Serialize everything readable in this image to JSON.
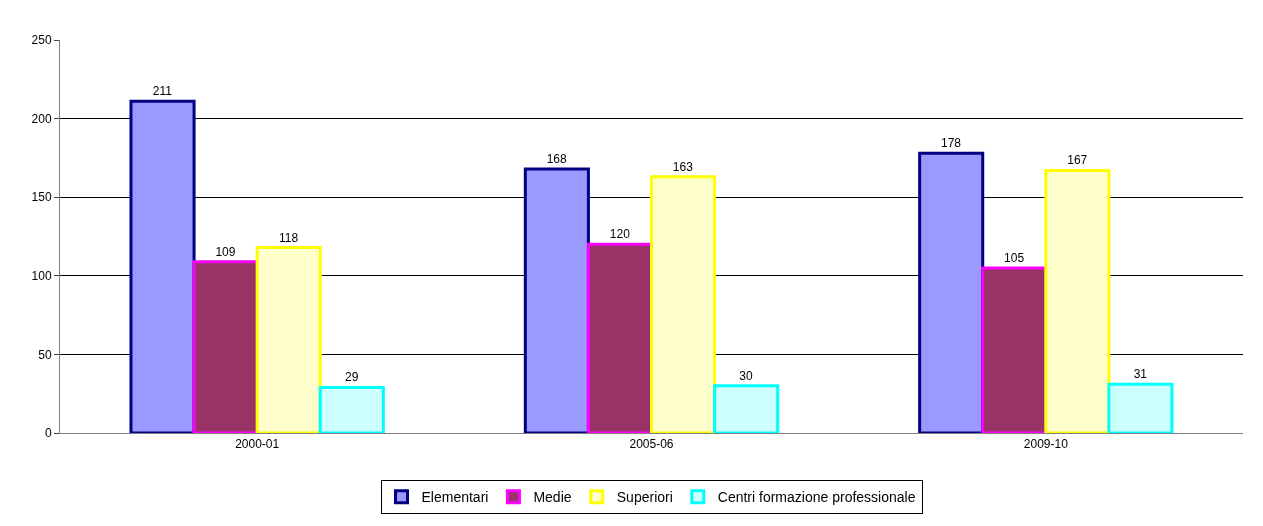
{
  "chart_data": {
    "type": "bar",
    "categories": [
      "2000-01",
      "2005-06",
      "2009-10"
    ],
    "series": [
      {
        "name": "Elementari",
        "color": "#9999ff",
        "values": [
          211,
          168,
          178
        ]
      },
      {
        "name": "Medie",
        "color": "#993366",
        "values": [
          109,
          120,
          105
        ]
      },
      {
        "name": "Superiori",
        "color": "#ffffcc",
        "values": [
          118,
          163,
          167
        ]
      },
      {
        "name": "Centri formazione professionale",
        "color": "#ccffff",
        "values": [
          29,
          30,
          31
        ]
      }
    ],
    "ylim": [
      0,
      250
    ],
    "yticks": [
      0,
      50,
      100,
      150,
      200,
      250
    ],
    "grid": "y",
    "legend": "bottom",
    "data_labels": true
  }
}
